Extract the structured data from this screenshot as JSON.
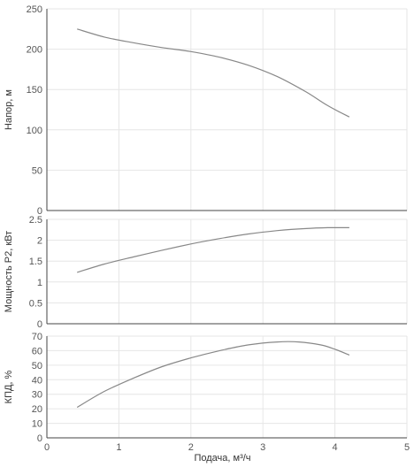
{
  "chart_data": [
    {
      "type": "line",
      "ylabel": "Напор, м",
      "xlim": [
        0,
        5
      ],
      "ylim": [
        0,
        250
      ],
      "yticks": [
        0,
        50,
        100,
        150,
        200,
        250
      ],
      "grid": true,
      "series": [
        {
          "color": "#888888",
          "x": [
            0.42,
            0.8,
            1.2,
            1.6,
            2.0,
            2.4,
            2.8,
            3.2,
            3.6,
            3.9,
            4.2
          ],
          "y": [
            225,
            215,
            208,
            202,
            197,
            190,
            180,
            166,
            147,
            130,
            116
          ]
        }
      ]
    },
    {
      "type": "line",
      "ylabel": "Мощность Р2, кВт",
      "xlim": [
        0,
        5
      ],
      "ylim": [
        0,
        2.5
      ],
      "yticks": [
        0,
        0.5,
        1,
        1.5,
        2,
        2.5
      ],
      "grid": true,
      "series": [
        {
          "color": "#888888",
          "x": [
            0.42,
            0.8,
            1.2,
            1.6,
            2.0,
            2.4,
            2.8,
            3.2,
            3.6,
            3.9,
            4.2
          ],
          "y": [
            1.23,
            1.43,
            1.6,
            1.76,
            1.91,
            2.04,
            2.15,
            2.23,
            2.28,
            2.3,
            2.3
          ]
        }
      ]
    },
    {
      "type": "line",
      "ylabel": "КПД, %",
      "xlabel": "Подача, м³/ч",
      "xlim": [
        0,
        5
      ],
      "xticks": [
        0,
        1,
        2,
        3,
        4,
        5
      ],
      "ylim": [
        0,
        70
      ],
      "yticks": [
        0,
        10,
        20,
        30,
        40,
        50,
        60,
        70
      ],
      "grid": true,
      "series": [
        {
          "color": "#888888",
          "x": [
            0.42,
            0.8,
            1.2,
            1.6,
            2.0,
            2.4,
            2.8,
            3.2,
            3.5,
            3.8,
            4.0,
            4.2
          ],
          "y": [
            21,
            32,
            41,
            49,
            55,
            60,
            64,
            66,
            66,
            64,
            61,
            57
          ]
        }
      ]
    }
  ]
}
